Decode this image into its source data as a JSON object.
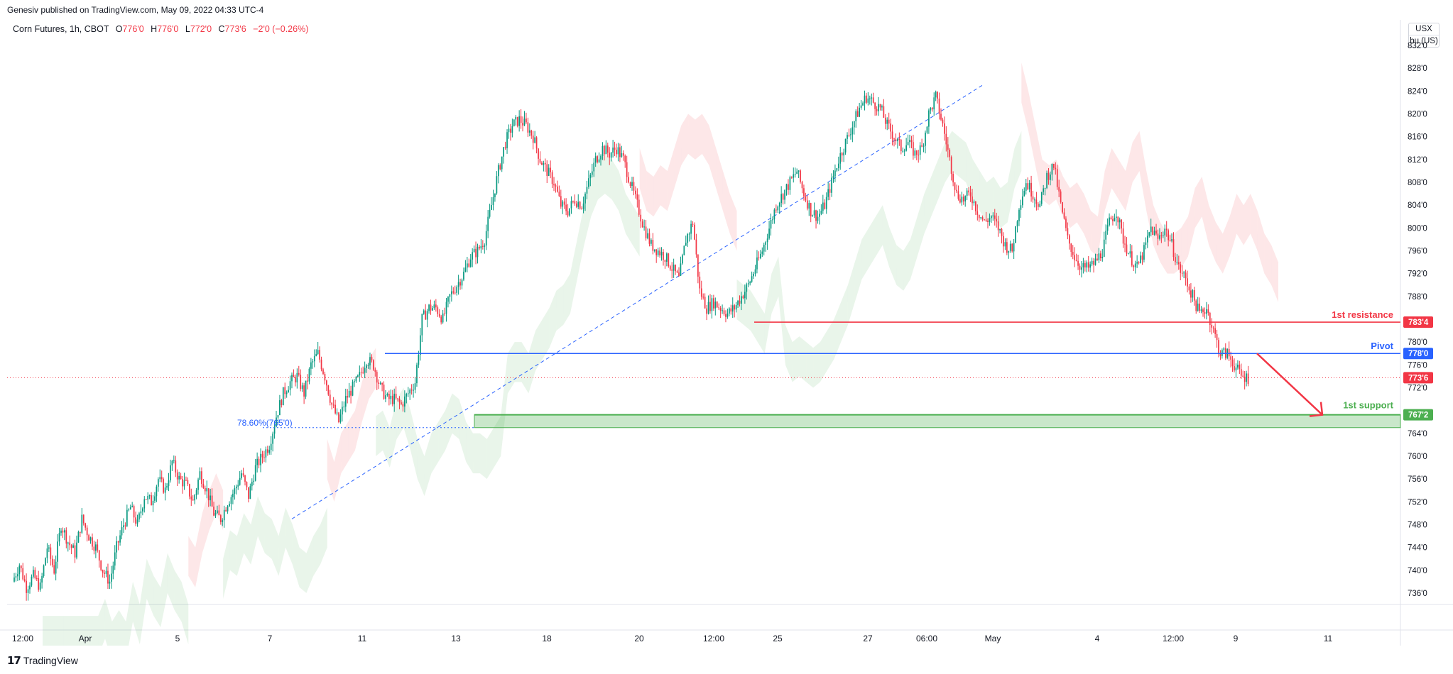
{
  "header": {
    "publisher": "Genesiv published on TradingView.com, May 09, 2022 04:33 UTC-4",
    "symbol": "Corn Futures, 1h, CBOT",
    "open_label": "O",
    "open": "776'0",
    "high_label": "H",
    "high": "776'0",
    "low_label": "L",
    "low": "772'0",
    "close_label": "C",
    "close": "773'6",
    "change": "−2'0 (−0.26%)"
  },
  "currency": {
    "line1": "USX",
    "line2": "bu (US)"
  },
  "footer": {
    "brand": "TradingView"
  },
  "colors": {
    "up": "#089981",
    "down": "#f23645",
    "resistance": "#f23645",
    "pivot": "#2962ff",
    "support": "#4caf50"
  },
  "chart_data": {
    "type": "candlestick",
    "symbol": "Corn Futures",
    "interval": "1h",
    "exchange": "CBOT",
    "ylim": [
      734,
      834
    ],
    "y_ticks": [
      "736'0",
      "740'0",
      "744'0",
      "748'0",
      "752'0",
      "756'0",
      "760'0",
      "764'0",
      "772'0",
      "776'0",
      "780'0",
      "788'0",
      "792'0",
      "796'0",
      "800'0",
      "804'0",
      "808'0",
      "812'0",
      "816'0",
      "820'0",
      "824'0",
      "828'0",
      "832'0"
    ],
    "x_ticks": [
      "12:00",
      "Apr",
      "5",
      "7",
      "11",
      "13",
      "18",
      "20",
      "12:00",
      "25",
      "27",
      "06:00",
      "May",
      "4",
      "12:00",
      "9",
      "11"
    ],
    "price_path": [
      738,
      741,
      737,
      739,
      737,
      744,
      740,
      748,
      745,
      743,
      749,
      746,
      744,
      740,
      738,
      744,
      748,
      751,
      748,
      753,
      752,
      756,
      754,
      759,
      756,
      755,
      752,
      757,
      754,
      750,
      749,
      752,
      754,
      757,
      753,
      758,
      760,
      762,
      767,
      771,
      773,
      774,
      771,
      776,
      778,
      774,
      769,
      766,
      770,
      772,
      774,
      777,
      776,
      772,
      770,
      770,
      769,
      771,
      773,
      784,
      786,
      786,
      784,
      788,
      790,
      792,
      795,
      796,
      798,
      804,
      810,
      815,
      818,
      819,
      818,
      816,
      812,
      810,
      808,
      804,
      803,
      805,
      804,
      808,
      812,
      814,
      813,
      814,
      812,
      808,
      804,
      800,
      797,
      796,
      795,
      793,
      791,
      798,
      801,
      789,
      786,
      787,
      786,
      785,
      786,
      788,
      790,
      793,
      796,
      800,
      804,
      806,
      808,
      810,
      806,
      803,
      802,
      804,
      808,
      812,
      815,
      818,
      821,
      823,
      822,
      821,
      818,
      816,
      814,
      815,
      813,
      814,
      820,
      823,
      818,
      812,
      806,
      805,
      806,
      803,
      801,
      802,
      800,
      797,
      796,
      804,
      808,
      806,
      804,
      809,
      811,
      804,
      798,
      795,
      793,
      793,
      794,
      796,
      801,
      803,
      798,
      795,
      793,
      796,
      800,
      798,
      800,
      797,
      793,
      791,
      788,
      785,
      786,
      782,
      778,
      778,
      776,
      774,
      773.75
    ],
    "ichimoku_cloud": "green cloud below price early and mid chart, red cloud above price late chart",
    "fib_level": {
      "label": "78.60%(765'0)",
      "value": 765
    },
    "trendline": {
      "from": {
        "x": "Apr 7",
        "y": 749
      },
      "to": {
        "x": "Apr 29",
        "y": 825
      },
      "style": "dashed"
    },
    "levels": [
      {
        "name": "1st resistance",
        "value": 783.5,
        "label": "783'4",
        "color": "#f23645"
      },
      {
        "name": "Pivot",
        "value": 778,
        "label": "778'0",
        "color": "#2962ff"
      },
      {
        "name": "1st support",
        "value": 767.25,
        "label": "767'2",
        "color": "#4caf50"
      }
    ],
    "support_zone": [
      765,
      767.25
    ],
    "last_price": {
      "value": 773.75,
      "label": "773'6"
    },
    "projection_arrow": {
      "from": 778,
      "to": 767.25,
      "direction": "down"
    }
  }
}
